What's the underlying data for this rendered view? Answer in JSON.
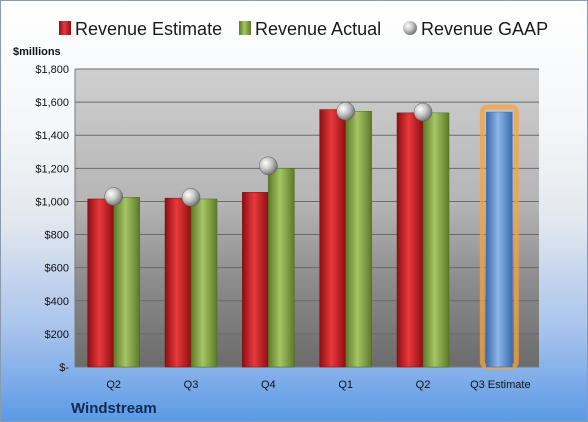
{
  "chart_data": {
    "type": "bar",
    "ylabel": "$millions",
    "company": "Windstream",
    "categories": [
      "Q2",
      "Q3",
      "Q4",
      "Q1",
      "Q2",
      "Q3 Estimate"
    ],
    "series": [
      {
        "name": "Revenue Estimate",
        "color": "#d9252a",
        "values": [
          1015,
          1020,
          1055,
          1555,
          1535,
          null
        ]
      },
      {
        "name": "Revenue Actual",
        "color": "#8fb04d",
        "values": [
          1025,
          1015,
          1200,
          1545,
          1535,
          null
        ]
      },
      {
        "name": "Revenue GAAP",
        "color": "#a8a8a8",
        "values": [
          1030,
          1025,
          1215,
          1545,
          1540,
          null
        ]
      }
    ],
    "estimate": {
      "category": "Q3 Estimate",
      "value": 1540,
      "color": "#6f9ed8",
      "highlight": "#f5a340"
    },
    "yticks": [
      "$-",
      "$200",
      "$400",
      "$600",
      "$800",
      "$1,000",
      "$1,200",
      "$1,400",
      "$1,600",
      "$1,800"
    ],
    "ylim": [
      0,
      1800
    ],
    "grid": true,
    "legend_position": "top"
  }
}
